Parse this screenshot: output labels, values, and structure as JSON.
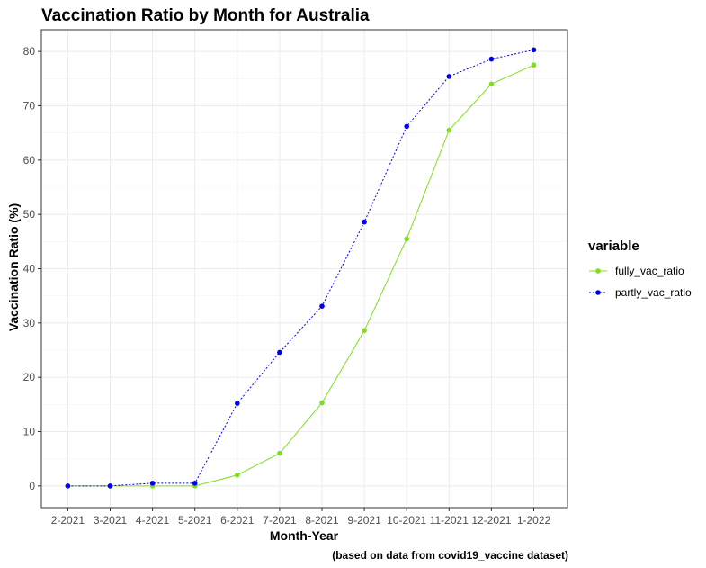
{
  "chart_data": {
    "type": "line",
    "title": "Vaccination Ratio by Month for Australia",
    "xlabel": "Month-Year",
    "ylabel": "Vaccination Ratio (%)",
    "caption": "(based on data from covid19_vaccine dataset)",
    "categories": [
      "2-2021",
      "3-2021",
      "4-2021",
      "5-2021",
      "6-2021",
      "7-2021",
      "8-2021",
      "9-2021",
      "10-2021",
      "11-2021",
      "12-2021",
      "1-2022"
    ],
    "ylim": [
      -4,
      84
    ],
    "yticks": [
      0,
      10,
      20,
      30,
      40,
      50,
      60,
      70,
      80
    ],
    "grid": true,
    "legend": {
      "title": "variable",
      "position": "right"
    },
    "series": [
      {
        "name": "fully_vac_ratio",
        "color": "#7fe01a",
        "dash": "solid",
        "values": [
          0.0,
          0.0,
          0.0,
          0.0,
          2.0,
          6.0,
          15.3,
          28.6,
          45.5,
          65.5,
          74.0,
          77.5
        ]
      },
      {
        "name": "partly_vac_ratio",
        "color": "#0000ee",
        "dash": "dotted",
        "values": [
          0.0,
          0.0,
          0.5,
          0.5,
          15.2,
          24.6,
          33.1,
          48.6,
          66.2,
          75.4,
          78.6,
          80.3
        ]
      }
    ]
  }
}
